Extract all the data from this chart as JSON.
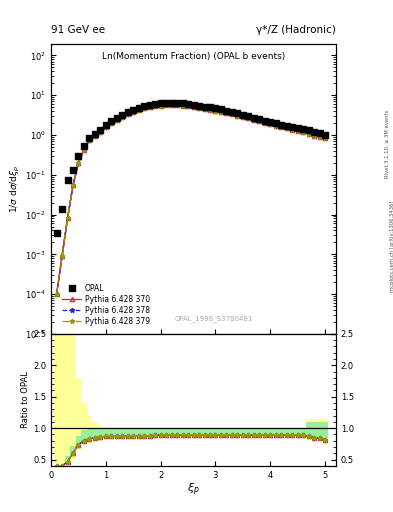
{
  "title_left": "91 GeV ee",
  "title_right": "γ*/Z (Hadronic)",
  "plot_title": "Ln(Momentum Fraction) (OPAL b events)",
  "watermark": "OPAL_1998_S3780481",
  "ylabel_main": "1/σ dσ/dξ_p",
  "ylabel_ratio": "Ratio to OPAL",
  "xlabel": "ξ_p",
  "right_label": "Rivet 3.1.10, ≥ 3M events",
  "right_label2": "mcplots.cern.ch [arXiv:1306.3436]",
  "xi_p": [
    0.1,
    0.2,
    0.3,
    0.4,
    0.5,
    0.6,
    0.7,
    0.8,
    0.9,
    1.0,
    1.1,
    1.2,
    1.3,
    1.4,
    1.5,
    1.6,
    1.7,
    1.8,
    1.9,
    2.0,
    2.1,
    2.2,
    2.3,
    2.4,
    2.5,
    2.6,
    2.7,
    2.8,
    2.9,
    3.0,
    3.1,
    3.2,
    3.3,
    3.4,
    3.5,
    3.6,
    3.7,
    3.8,
    3.9,
    4.0,
    4.1,
    4.2,
    4.3,
    4.4,
    4.5,
    4.6,
    4.7,
    4.8,
    4.9,
    5.0
  ],
  "opal_y": [
    0.0035,
    0.014,
    0.075,
    0.13,
    0.3,
    0.52,
    0.82,
    1.05,
    1.35,
    1.75,
    2.25,
    2.75,
    3.25,
    3.75,
    4.25,
    4.8,
    5.3,
    5.7,
    6.0,
    6.2,
    6.3,
    6.4,
    6.3,
    6.2,
    6.0,
    5.8,
    5.5,
    5.2,
    5.0,
    4.7,
    4.4,
    4.1,
    3.8,
    3.5,
    3.2,
    3.0,
    2.7,
    2.5,
    2.3,
    2.1,
    2.0,
    1.8,
    1.7,
    1.6,
    1.5,
    1.4,
    1.3,
    1.2,
    1.1,
    1.0
  ],
  "py370_y": [
    0.0001,
    0.0009,
    0.008,
    0.055,
    0.2,
    0.43,
    0.75,
    0.97,
    1.22,
    1.57,
    2.02,
    2.45,
    2.92,
    3.38,
    3.82,
    4.28,
    4.72,
    5.07,
    5.32,
    5.52,
    5.62,
    5.67,
    5.62,
    5.47,
    5.27,
    5.07,
    4.82,
    4.57,
    4.32,
    4.07,
    3.82,
    3.57,
    3.32,
    3.07,
    2.82,
    2.62,
    2.42,
    2.22,
    2.02,
    1.87,
    1.72,
    1.57,
    1.47,
    1.37,
    1.27,
    1.17,
    1.07,
    0.97,
    0.89,
    0.82
  ],
  "py378_y": [
    0.0001,
    0.0009,
    0.008,
    0.055,
    0.2,
    0.43,
    0.75,
    0.97,
    1.22,
    1.57,
    2.02,
    2.45,
    2.92,
    3.38,
    3.82,
    4.28,
    4.72,
    5.07,
    5.32,
    5.52,
    5.62,
    5.67,
    5.62,
    5.47,
    5.27,
    5.07,
    4.82,
    4.57,
    4.32,
    4.07,
    3.82,
    3.57,
    3.32,
    3.07,
    2.82,
    2.62,
    2.42,
    2.22,
    2.02,
    1.87,
    1.72,
    1.57,
    1.47,
    1.37,
    1.27,
    1.17,
    1.07,
    0.97,
    0.89,
    0.82
  ],
  "py379_y": [
    0.0001,
    0.0009,
    0.008,
    0.055,
    0.2,
    0.43,
    0.75,
    0.97,
    1.22,
    1.57,
    2.02,
    2.45,
    2.92,
    3.38,
    3.82,
    4.28,
    4.72,
    5.07,
    5.32,
    5.52,
    5.62,
    5.67,
    5.62,
    5.47,
    5.27,
    5.07,
    4.82,
    4.57,
    4.32,
    4.07,
    3.82,
    3.57,
    3.32,
    3.07,
    2.82,
    2.62,
    2.42,
    2.22,
    2.02,
    1.87,
    1.72,
    1.57,
    1.47,
    1.37,
    1.27,
    1.17,
    1.07,
    0.97,
    0.89,
    0.82
  ],
  "band_yellow_lo": [
    0.4,
    0.4,
    0.42,
    0.5,
    0.65,
    0.75,
    0.8,
    0.82,
    0.83,
    0.83,
    0.83,
    0.84,
    0.84,
    0.84,
    0.84,
    0.84,
    0.84,
    0.84,
    0.85,
    0.85,
    0.85,
    0.85,
    0.85,
    0.85,
    0.85,
    0.85,
    0.85,
    0.85,
    0.85,
    0.85,
    0.85,
    0.85,
    0.85,
    0.85,
    0.85,
    0.85,
    0.85,
    0.85,
    0.85,
    0.85,
    0.85,
    0.85,
    0.85,
    0.85,
    0.85,
    0.85,
    0.83,
    0.82,
    0.82,
    0.82
  ],
  "band_yellow_hi": [
    2.5,
    2.5,
    2.5,
    2.5,
    1.8,
    1.4,
    1.2,
    1.1,
    1.05,
    1.02,
    1.01,
    1.01,
    1.01,
    1.01,
    1.01,
    1.01,
    1.01,
    1.01,
    1.01,
    1.01,
    1.01,
    1.01,
    1.01,
    1.01,
    1.01,
    1.01,
    1.01,
    1.01,
    1.01,
    1.01,
    1.01,
    1.01,
    1.01,
    1.01,
    1.01,
    1.01,
    1.01,
    1.01,
    1.01,
    1.01,
    1.01,
    1.01,
    1.01,
    1.01,
    1.01,
    1.01,
    1.15,
    1.15,
    1.15,
    1.15
  ],
  "band_green_lo": [
    0.4,
    0.4,
    0.44,
    0.55,
    0.7,
    0.77,
    0.81,
    0.83,
    0.84,
    0.84,
    0.85,
    0.85,
    0.85,
    0.85,
    0.85,
    0.86,
    0.86,
    0.86,
    0.86,
    0.86,
    0.87,
    0.87,
    0.87,
    0.87,
    0.87,
    0.87,
    0.87,
    0.87,
    0.87,
    0.87,
    0.87,
    0.87,
    0.87,
    0.87,
    0.87,
    0.87,
    0.87,
    0.87,
    0.87,
    0.87,
    0.87,
    0.87,
    0.87,
    0.87,
    0.87,
    0.87,
    0.86,
    0.85,
    0.85,
    0.85
  ],
  "band_green_hi": [
    0.4,
    0.4,
    0.55,
    0.72,
    0.88,
    0.97,
    1.0,
    1.01,
    1.01,
    1.01,
    1.01,
    1.01,
    1.01,
    1.01,
    1.01,
    1.01,
    1.01,
    1.01,
    1.01,
    1.01,
    1.01,
    1.01,
    1.01,
    1.01,
    1.01,
    1.01,
    1.01,
    1.01,
    1.01,
    1.01,
    1.01,
    1.01,
    1.01,
    1.01,
    1.01,
    1.01,
    1.01,
    1.01,
    1.01,
    1.01,
    1.01,
    1.01,
    1.01,
    1.01,
    1.01,
    1.01,
    1.1,
    1.1,
    1.1,
    1.1
  ],
  "ratio_370": [
    0.4,
    0.4,
    0.46,
    0.6,
    0.74,
    0.8,
    0.83,
    0.85,
    0.86,
    0.87,
    0.87,
    0.87,
    0.88,
    0.88,
    0.88,
    0.88,
    0.88,
    0.88,
    0.89,
    0.89,
    0.89,
    0.89,
    0.89,
    0.89,
    0.89,
    0.89,
    0.89,
    0.89,
    0.89,
    0.89,
    0.89,
    0.89,
    0.89,
    0.89,
    0.89,
    0.89,
    0.89,
    0.89,
    0.89,
    0.89,
    0.89,
    0.89,
    0.89,
    0.89,
    0.89,
    0.89,
    0.87,
    0.85,
    0.84,
    0.82
  ],
  "ratio_378": [
    0.4,
    0.4,
    0.47,
    0.61,
    0.74,
    0.8,
    0.83,
    0.85,
    0.86,
    0.87,
    0.87,
    0.87,
    0.88,
    0.88,
    0.88,
    0.88,
    0.88,
    0.88,
    0.89,
    0.89,
    0.89,
    0.89,
    0.89,
    0.89,
    0.89,
    0.89,
    0.89,
    0.89,
    0.89,
    0.89,
    0.89,
    0.89,
    0.89,
    0.89,
    0.89,
    0.89,
    0.89,
    0.89,
    0.89,
    0.89,
    0.89,
    0.89,
    0.89,
    0.89,
    0.89,
    0.89,
    0.87,
    0.85,
    0.84,
    0.82
  ],
  "ratio_379": [
    0.4,
    0.4,
    0.47,
    0.61,
    0.74,
    0.8,
    0.83,
    0.85,
    0.86,
    0.87,
    0.87,
    0.87,
    0.88,
    0.88,
    0.88,
    0.88,
    0.88,
    0.88,
    0.89,
    0.89,
    0.89,
    0.89,
    0.89,
    0.89,
    0.89,
    0.89,
    0.89,
    0.89,
    0.89,
    0.89,
    0.89,
    0.89,
    0.89,
    0.89,
    0.89,
    0.89,
    0.89,
    0.89,
    0.89,
    0.89,
    0.89,
    0.89,
    0.89,
    0.89,
    0.89,
    0.89,
    0.87,
    0.85,
    0.84,
    0.82
  ],
  "color_opal": "#000000",
  "color_370": "#ee2222",
  "color_378": "#2222ee",
  "color_379": "#999900",
  "color_yellow": "#ffff99",
  "color_green": "#99ee99",
  "xlim": [
    0.0,
    5.2
  ],
  "ylim_ratio": [
    0.4,
    2.5
  ],
  "bg_color": "#ffffff"
}
